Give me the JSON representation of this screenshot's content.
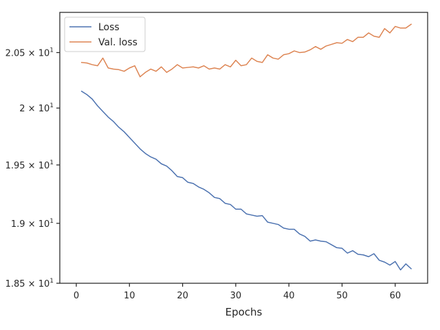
{
  "chart_data": {
    "type": "line",
    "title": "",
    "xlabel": "Epochs",
    "ylabel": "",
    "y_scale": "log",
    "grid": false,
    "legend_position": "top-left",
    "xlim": [
      -3.1,
      66.1
    ],
    "ylim": [
      18.5,
      20.87
    ],
    "x_ticks": [
      0,
      10,
      20,
      30,
      40,
      50,
      60
    ],
    "x_tick_labels": [
      "0",
      "10",
      "20",
      "30",
      "40",
      "50",
      "60"
    ],
    "y_ticks": [
      18.5,
      19,
      19.5,
      20,
      20.5
    ],
    "y_tick_labels": [
      {
        "mantissa": "1.85",
        "exp": "1"
      },
      {
        "mantissa": "1.9",
        "exp": "1"
      },
      {
        "mantissa": "1.95",
        "exp": "1"
      },
      {
        "mantissa": "2",
        "exp": "1"
      },
      {
        "mantissa": "2.05",
        "exp": "1"
      }
    ],
    "x": [
      1,
      2,
      3,
      4,
      5,
      6,
      7,
      8,
      9,
      10,
      11,
      12,
      13,
      14,
      15,
      16,
      17,
      18,
      19,
      20,
      21,
      22,
      23,
      24,
      25,
      26,
      27,
      28,
      29,
      30,
      31,
      32,
      33,
      34,
      35,
      36,
      37,
      38,
      39,
      40,
      41,
      42,
      43,
      44,
      45,
      46,
      47,
      48,
      49,
      50,
      51,
      52,
      53,
      54,
      55,
      56,
      57,
      58,
      59,
      60,
      61,
      62,
      63
    ],
    "series": [
      {
        "name": "Loss",
        "color": "#4c72b0",
        "values": [
          20.15,
          20.12,
          20.08,
          20.02,
          19.97,
          19.92,
          19.88,
          19.83,
          19.79,
          19.74,
          19.69,
          19.64,
          19.6,
          19.57,
          19.55,
          19.51,
          19.49,
          19.45,
          19.4,
          19.39,
          19.35,
          19.34,
          19.31,
          19.29,
          19.26,
          19.22,
          19.21,
          19.17,
          19.16,
          19.12,
          19.12,
          19.08,
          19.07,
          19.06,
          19.065,
          19.01,
          19.0,
          18.99,
          18.96,
          18.95,
          18.95,
          18.91,
          18.89,
          18.85,
          18.86,
          18.85,
          18.845,
          18.82,
          18.795,
          18.79,
          18.75,
          18.77,
          18.74,
          18.735,
          18.72,
          18.745,
          18.69,
          18.675,
          18.65,
          18.68,
          18.61,
          18.66,
          18.62
        ]
      },
      {
        "name": "Val. loss",
        "color": "#dd8452",
        "values": [
          20.41,
          20.405,
          20.39,
          20.38,
          20.45,
          20.36,
          20.35,
          20.345,
          20.33,
          20.36,
          20.38,
          20.28,
          20.32,
          20.35,
          20.33,
          20.37,
          20.32,
          20.35,
          20.39,
          20.36,
          20.365,
          20.37,
          20.36,
          20.38,
          20.35,
          20.36,
          20.35,
          20.39,
          20.37,
          20.43,
          20.38,
          20.39,
          20.45,
          20.42,
          20.41,
          20.48,
          20.45,
          20.44,
          20.48,
          20.49,
          20.515,
          20.5,
          20.505,
          20.525,
          20.555,
          20.53,
          20.56,
          20.575,
          20.59,
          20.585,
          20.62,
          20.6,
          20.64,
          20.64,
          20.68,
          20.65,
          20.64,
          20.72,
          20.68,
          20.74,
          20.725,
          20.725,
          20.76
        ]
      }
    ]
  }
}
